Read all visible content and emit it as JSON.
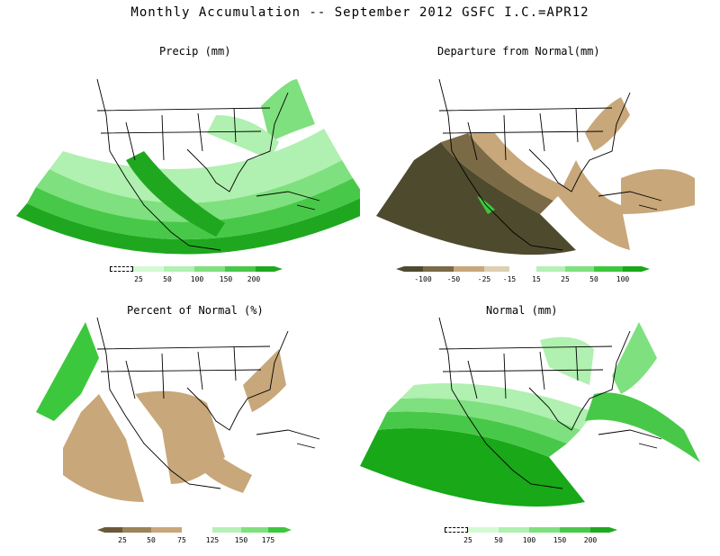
{
  "title": "Monthly Accumulation -- September 2012 GSFC I.C.=APR12",
  "panels": [
    {
      "title": "Precip (mm)",
      "colorbar_ticks": [
        "25",
        "50",
        "100",
        "150",
        "200"
      ],
      "colors": [
        "#ffffff",
        "#d4fad4",
        "#b0f0b0",
        "#7ee07e",
        "#48c848",
        "#1fa81f"
      ]
    },
    {
      "title": "Departure from Normal(mm)",
      "colorbar_ticks": [
        "-100",
        "-50",
        "-25",
        "-15",
        "15",
        "25",
        "50",
        "100"
      ],
      "colors": [
        "#4e4a2e",
        "#7a6a46",
        "#c8a77a",
        "#ffffff",
        "#b6f0b6",
        "#7ee07e",
        "#3cc83c",
        "#18a818"
      ]
    },
    {
      "title": "Percent of Normal (%)",
      "colorbar_ticks": [
        "25",
        "50",
        "75",
        "125",
        "150",
        "175"
      ],
      "colors": [
        "#6a5a38",
        "#9a8458",
        "#c8a77a",
        "#ffffff",
        "#b6f0b6",
        "#7ee07e",
        "#3cc83c"
      ]
    },
    {
      "title": "Normal (mm)",
      "colorbar_ticks": [
        "25",
        "50",
        "100",
        "150",
        "200"
      ],
      "colors": [
        "#ffffff",
        "#d4fad4",
        "#b0f0b0",
        "#7ee07e",
        "#48c848",
        "#1fa81f"
      ]
    }
  ]
}
